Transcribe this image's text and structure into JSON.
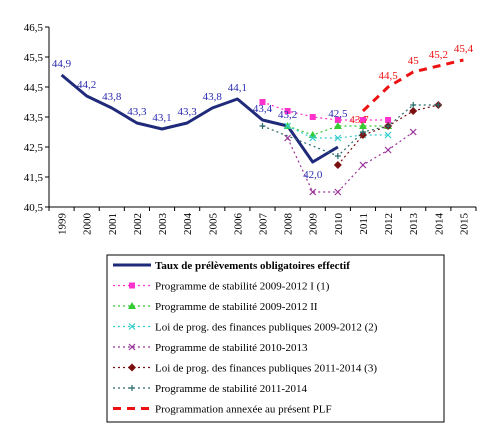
{
  "chart_data": {
    "type": "line",
    "title": "",
    "xlabel": "",
    "ylabel": "",
    "x": [
      "1999",
      "2000",
      "2001",
      "2002",
      "2003",
      "2004",
      "2005",
      "2006",
      "2007",
      "2008",
      "2009",
      "2010",
      "2011",
      "2012",
      "2013",
      "2014",
      "2015"
    ],
    "ylim": [
      40.5,
      46.5
    ],
    "yticks": [
      "40,5",
      "41,5",
      "42,5",
      "43,5",
      "44,5",
      "45,5",
      "46,5"
    ],
    "grid": false,
    "legend_position": "bottom",
    "series": [
      {
        "name": "Taux de prélèvements obligatoires effectif",
        "color": "#1f2a7a",
        "style": "solid-thick",
        "marker": "none",
        "values": [
          44.9,
          44.2,
          43.8,
          43.3,
          43.1,
          43.3,
          43.8,
          44.1,
          43.4,
          43.2,
          42.0,
          42.5,
          null,
          null,
          null,
          null,
          null
        ],
        "labels": [
          "44,9",
          "44,2",
          "43,8",
          "43,3",
          "43,1",
          "43,3",
          "43,8",
          "44,1",
          "43,4",
          "43,2",
          "42,0",
          "42,5",
          null,
          null,
          null,
          null,
          null
        ],
        "label_color": "#2a2ab0"
      },
      {
        "name": "Programme de stabilité 2009-2012 I (1)",
        "color": "#ff33cc",
        "style": "dotted",
        "marker": "square",
        "values": [
          null,
          null,
          null,
          null,
          null,
          null,
          null,
          null,
          44.0,
          43.7,
          43.5,
          43.4,
          43.4,
          43.4,
          null,
          null,
          null
        ]
      },
      {
        "name": "Programme de stabilité 2009-2012 II",
        "color": "#33cc33",
        "style": "dotted",
        "marker": "triangle",
        "values": [
          null,
          null,
          null,
          null,
          null,
          null,
          null,
          null,
          null,
          43.2,
          42.9,
          43.2,
          43.2,
          43.2,
          null,
          null,
          null
        ]
      },
      {
        "name": "Loi de prog. des finances publiques 2009-2012 (2)",
        "color": "#33cccc",
        "style": "dotted",
        "marker": "x",
        "values": [
          null,
          null,
          null,
          null,
          null,
          null,
          null,
          null,
          null,
          43.2,
          42.8,
          42.8,
          42.9,
          42.9,
          null,
          null,
          null
        ]
      },
      {
        "name": "Programme de stabilité 2010-2013",
        "color": "#993399",
        "style": "dotted",
        "marker": "x",
        "values": [
          null,
          null,
          null,
          null,
          null,
          null,
          null,
          null,
          null,
          42.8,
          41.0,
          41.0,
          41.9,
          42.4,
          43.0,
          null,
          null
        ]
      },
      {
        "name": "Loi de prog. des finances publiques 2011-2014 (3)",
        "color": "#7a1010",
        "style": "dotted",
        "marker": "diamond",
        "values": [
          null,
          null,
          null,
          null,
          null,
          null,
          null,
          null,
          null,
          null,
          null,
          41.9,
          42.9,
          43.2,
          43.7,
          43.9,
          null
        ]
      },
      {
        "name": "Programme de stabilité 2011-2014",
        "color": "#2a6a6a",
        "style": "dotted",
        "marker": "plus",
        "values": [
          null,
          null,
          null,
          null,
          null,
          null,
          null,
          null,
          43.2,
          null,
          null,
          42.2,
          43.0,
          43.2,
          43.9,
          43.9,
          null
        ]
      },
      {
        "name": "Programmation annexée au présent PLF",
        "color": "#ee1111",
        "style": "dashed-thick",
        "marker": "none",
        "values": [
          null,
          null,
          null,
          null,
          null,
          null,
          null,
          null,
          null,
          null,
          null,
          null,
          43.7,
          44.5,
          45.0,
          45.2,
          45.4
        ],
        "labels": [
          null,
          null,
          null,
          null,
          null,
          null,
          null,
          null,
          null,
          null,
          null,
          null,
          "43,7",
          "44,5",
          "45",
          "45,2",
          "45,4"
        ],
        "label_color": "#ee1111"
      }
    ]
  }
}
